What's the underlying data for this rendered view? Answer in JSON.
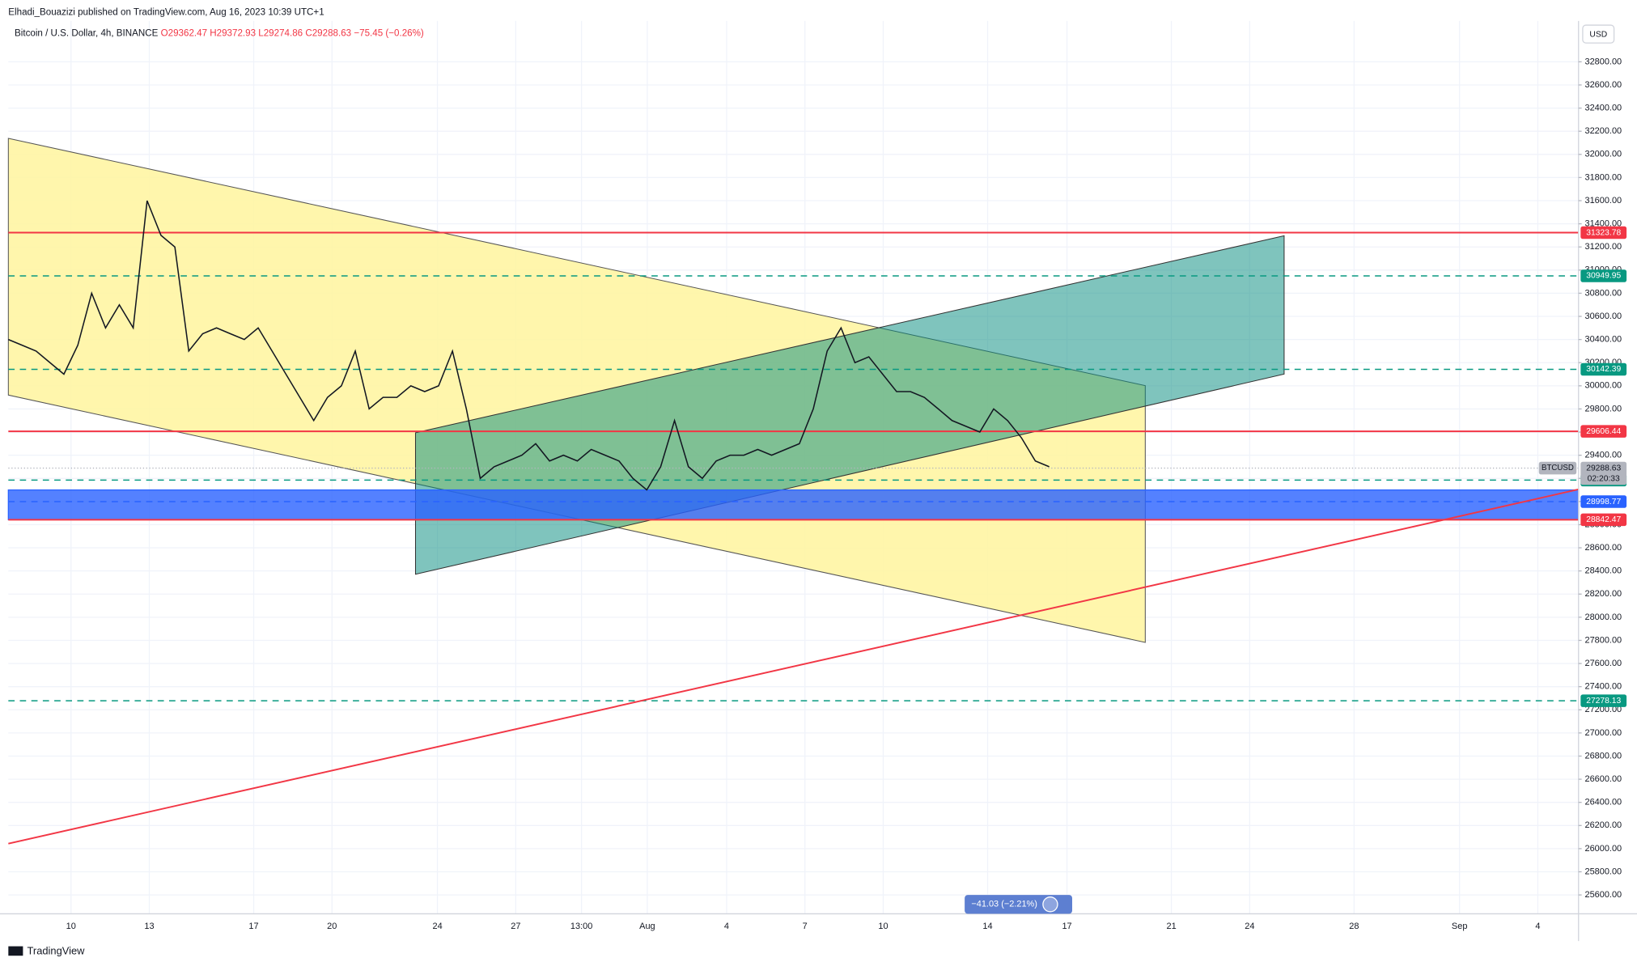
{
  "header": {
    "publisher": "Elhadi_Bouazizi published on TradingView.com, Aug 16, 2023 10:39 UTC+1",
    "symbol": "Bitcoin / U.S. Dollar, 4h, BINANCE",
    "open": "O29362.47",
    "high": "H29372.93",
    "low": "L29274.86",
    "close": "C29288.63",
    "change": "−75.45 (−0.26%)",
    "currency": "USD"
  },
  "chart_data": {
    "type": "line",
    "series": [
      {
        "name": "BTCUSD",
        "color": "#131722",
        "values": [
          30400,
          30350,
          30300,
          30200,
          30100,
          30350,
          30800,
          30500,
          30700,
          30500,
          31600,
          31300,
          31200,
          30300,
          30450,
          30500,
          30450,
          30400,
          30500,
          30300,
          30100,
          29900,
          29700,
          29900,
          30000,
          30300,
          29800,
          29900,
          29900,
          30000,
          29950,
          30000,
          30300,
          29800,
          29200,
          29300,
          29350,
          29400,
          29500,
          29350,
          29400,
          29350,
          29450,
          29400,
          29350,
          29200,
          29100,
          29300,
          29700,
          29300,
          29200,
          29350,
          29400,
          29400,
          29450,
          29400,
          29450,
          29500,
          29800,
          30300,
          30500,
          30200,
          30250,
          30100,
          29950,
          29950,
          29900,
          29800,
          29700,
          29650,
          29600,
          29800,
          29700,
          29550,
          29350,
          29300
        ]
      }
    ],
    "ylim": [
      25437,
      33153
    ],
    "yticks": [
      {
        "value": 25600,
        "label": "25600.00"
      },
      {
        "value": 25800,
        "label": "25800.00"
      },
      {
        "value": 26000,
        "label": "26000.00"
      },
      {
        "value": 26200,
        "label": "26200.00"
      },
      {
        "value": 26400,
        "label": "26400.00"
      },
      {
        "value": 26600,
        "label": "26600.00"
      },
      {
        "value": 26800,
        "label": "26800.00"
      },
      {
        "value": 27000,
        "label": "27000.00"
      },
      {
        "value": 27200,
        "label": "27200.00"
      },
      {
        "value": 27400,
        "label": "27400.00"
      },
      {
        "value": 27600,
        "label": "27600.00"
      },
      {
        "value": 27800,
        "label": "27800.00"
      },
      {
        "value": 28000,
        "label": "28000.00"
      },
      {
        "value": 28200,
        "label": "28200.00"
      },
      {
        "value": 28400,
        "label": "28400.00"
      },
      {
        "value": 28600,
        "label": "28600.00"
      },
      {
        "value": 28800,
        "label": "28800.00"
      },
      {
        "value": 29000,
        "label": "29000.00"
      },
      {
        "value": 29200,
        "label": "29200.00"
      },
      {
        "value": 29400,
        "label": "29400.00"
      },
      {
        "value": 29600,
        "label": "29600.00"
      },
      {
        "value": 29800,
        "label": "29800.00"
      },
      {
        "value": 30000,
        "label": "30000.00"
      },
      {
        "value": 30200,
        "label": "30200.00"
      },
      {
        "value": 30400,
        "label": "30400.00"
      },
      {
        "value": 30600,
        "label": "30600.00"
      },
      {
        "value": 30800,
        "label": "30800.00"
      },
      {
        "value": 31000,
        "label": "31000.00"
      },
      {
        "value": 31200,
        "label": "31200.00"
      },
      {
        "value": 31400,
        "label": "31400.00"
      },
      {
        "value": 31600,
        "label": "31600.00"
      },
      {
        "value": 31800,
        "label": "31800.00"
      },
      {
        "value": 32000,
        "label": "32000.00"
      },
      {
        "value": 32200,
        "label": "32200.00"
      },
      {
        "value": 32400,
        "label": "32400.00"
      },
      {
        "value": 32600,
        "label": "32600.00"
      },
      {
        "value": 32800,
        "label": "32800.00"
      }
    ],
    "xticks": [
      "10",
      "13",
      "17",
      "20",
      "24",
      "27",
      "13:00",
      "Aug",
      "4",
      "7",
      "10",
      "14",
      "17",
      "21",
      "24",
      "28",
      "Sep",
      "4"
    ],
    "grid": true,
    "levels": [
      {
        "value": 31323.78,
        "color": "#f23645",
        "style": "solid"
      },
      {
        "value": 30949.95,
        "color": "#089981",
        "style": "dashed"
      },
      {
        "value": 30142.39,
        "color": "#089981",
        "style": "dashed"
      },
      {
        "value": 29606.44,
        "color": "#f23645",
        "style": "solid"
      },
      {
        "value": 29185.38,
        "color": "#089981",
        "style": "dashed"
      },
      {
        "value": 28998.77,
        "color": "#2962ff",
        "style": "dashed"
      },
      {
        "value": 28842.47,
        "color": "#f23645",
        "style": "solid"
      },
      {
        "value": 27278.13,
        "color": "#089981",
        "style": "dashed"
      }
    ],
    "zone": {
      "from": 28842.47,
      "to": 29100,
      "color": "#2962ff"
    },
    "last_price": {
      "symbol": "BTCUSD",
      "value": 29288.63,
      "countdown": "02:20:33"
    },
    "measure": "−41.03 (−2.21%)"
  },
  "footer": {
    "brand": "TradingView"
  }
}
